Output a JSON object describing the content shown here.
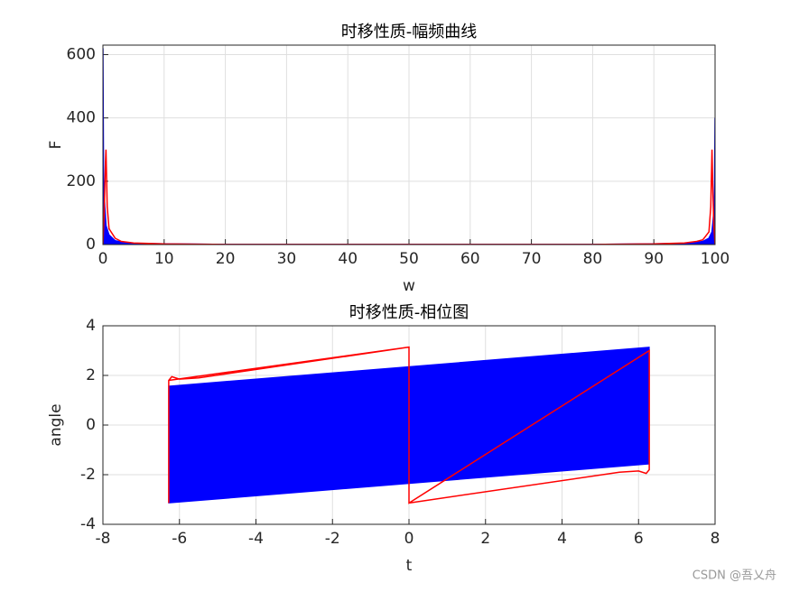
{
  "chart_data": [
    {
      "type": "line",
      "title": "时移性质-幅频曲线",
      "xlabel": "w",
      "ylabel": "F",
      "xlim": [
        0,
        100
      ],
      "xticks": [
        0,
        10,
        20,
        30,
        40,
        50,
        60,
        70,
        80,
        90,
        100
      ],
      "ylim": [
        0,
        630
      ],
      "yticks": [
        0,
        200,
        400,
        600
      ],
      "grid": true,
      "series": [
        {
          "color": "#0000ff",
          "fill": true,
          "x": [
            0,
            0.1,
            0.3,
            0.5,
            1,
            2,
            3,
            5,
            10,
            20,
            50,
            80,
            90,
            95,
            97,
            98,
            99,
            99.5,
            99.7,
            99.9,
            100
          ],
          "values": [
            620,
            200,
            120,
            60,
            30,
            12,
            8,
            4,
            2,
            0.5,
            0.2,
            0.5,
            2,
            4,
            7,
            10,
            20,
            40,
            80,
            130,
            400
          ]
        },
        {
          "color": "#ff0000",
          "fill": false,
          "x": [
            0,
            0.2,
            0.4,
            0.5,
            0.7,
            1,
            2,
            3,
            5,
            10,
            20,
            50,
            80,
            90,
            95,
            97,
            98,
            99,
            99.3,
            99.5,
            99.6,
            99.8,
            100
          ],
          "values": [
            0,
            100,
            250,
            300,
            120,
            50,
            20,
            10,
            5,
            2,
            0.5,
            0.2,
            0.5,
            2,
            5,
            10,
            15,
            40,
            120,
            300,
            200,
            60,
            0
          ]
        }
      ]
    },
    {
      "type": "line",
      "title": "时移性质-相位图",
      "xlabel": "t",
      "ylabel": "angle",
      "xlim": [
        -8,
        8
      ],
      "xticks": [
        -8,
        -6,
        -4,
        -2,
        0,
        2,
        4,
        6,
        8
      ],
      "ylim": [
        -4,
        4
      ],
      "yticks": [
        -4,
        -2,
        0,
        2,
        4
      ],
      "grid": true,
      "series": [
        {
          "color": "#0000ff",
          "fill": true,
          "x": [
            -6.28,
            6.28
          ],
          "values": [
            1.57,
            3.14
          ],
          "lower": [
            -3.14,
            -1.57
          ]
        },
        {
          "color": "#ff0000",
          "fill": false,
          "x": [
            -6.28,
            -6.28,
            -6.2,
            -6.0,
            -5.5,
            0,
            0,
            5.5,
            6.0,
            6.2,
            6.28,
            6.28,
            0,
            0,
            -6.28
          ],
          "values": [
            -3.14,
            1.8,
            1.95,
            1.85,
            1.9,
            3.14,
            -3.14,
            -1.9,
            -1.85,
            -1.95,
            -1.8,
            3.0,
            -3.14,
            3.14,
            1.8
          ]
        }
      ]
    }
  ],
  "watermark": "CSDN @吾乂舟"
}
